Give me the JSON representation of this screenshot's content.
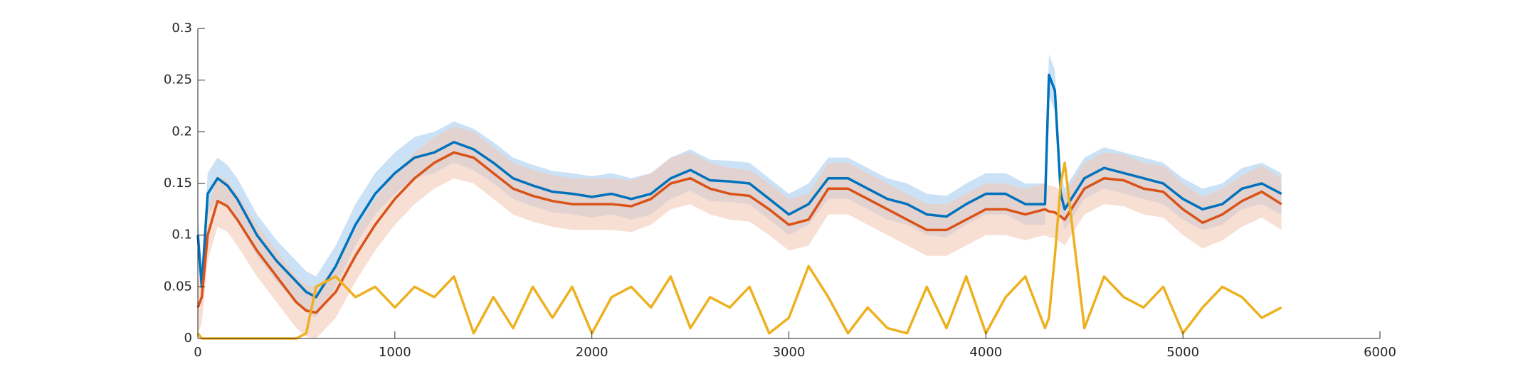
{
  "chart_data": {
    "type": "line",
    "x": [
      0,
      20,
      50,
      100,
      150,
      200,
      300,
      400,
      500,
      550,
      600,
      700,
      800,
      900,
      1000,
      1100,
      1200,
      1300,
      1400,
      1500,
      1600,
      1700,
      1800,
      1900,
      2000,
      2100,
      2200,
      2300,
      2400,
      2500,
      2600,
      2700,
      2800,
      2900,
      3000,
      3100,
      3200,
      3300,
      3400,
      3500,
      3600,
      3700,
      3800,
      3900,
      4000,
      4100,
      4200,
      4300,
      4320,
      4350,
      4380,
      4400,
      4500,
      4600,
      4700,
      4800,
      4900,
      5000,
      5100,
      5200,
      5300,
      5400,
      5500
    ],
    "series": [
      {
        "color": "#0072bd",
        "band": 0.02,
        "band_color": "#a8cdef",
        "values": [
          0.1,
          0.05,
          0.14,
          0.155,
          0.148,
          0.135,
          0.1,
          0.075,
          0.055,
          0.045,
          0.04,
          0.07,
          0.11,
          0.14,
          0.16,
          0.175,
          0.18,
          0.19,
          0.183,
          0.17,
          0.155,
          0.148,
          0.142,
          0.14,
          0.137,
          0.14,
          0.135,
          0.14,
          0.155,
          0.163,
          0.153,
          0.152,
          0.15,
          0.135,
          0.12,
          0.13,
          0.155,
          0.155,
          0.145,
          0.135,
          0.13,
          0.12,
          0.118,
          0.13,
          0.14,
          0.14,
          0.13,
          0.13,
          0.255,
          0.24,
          0.14,
          0.125,
          0.155,
          0.165,
          0.16,
          0.155,
          0.15,
          0.135,
          0.125,
          0.13,
          0.145,
          0.15,
          0.14
        ]
      },
      {
        "color": "#d95319",
        "band": 0.025,
        "band_color": "#f3c9b8",
        "values": [
          0.03,
          0.04,
          0.1,
          0.133,
          0.128,
          0.115,
          0.085,
          0.06,
          0.035,
          0.027,
          0.025,
          0.045,
          0.08,
          0.11,
          0.135,
          0.155,
          0.17,
          0.18,
          0.175,
          0.16,
          0.145,
          0.138,
          0.133,
          0.13,
          0.13,
          0.13,
          0.128,
          0.135,
          0.15,
          0.155,
          0.145,
          0.14,
          0.138,
          0.125,
          0.11,
          0.115,
          0.145,
          0.145,
          0.135,
          0.125,
          0.115,
          0.105,
          0.105,
          0.115,
          0.125,
          0.125,
          0.12,
          0.125,
          0.123,
          0.122,
          0.118,
          0.115,
          0.145,
          0.155,
          0.153,
          0.145,
          0.142,
          0.125,
          0.112,
          0.12,
          0.133,
          0.142,
          0.13
        ]
      },
      {
        "color": "#edb120",
        "values": [
          0.005,
          0,
          0,
          0,
          0,
          0,
          0,
          0,
          0,
          0.005,
          0.05,
          0.06,
          0.04,
          0.05,
          0.03,
          0.05,
          0.04,
          0.06,
          0.005,
          0.04,
          0.01,
          0.05,
          0.02,
          0.05,
          0.005,
          0.04,
          0.05,
          0.03,
          0.06,
          0.01,
          0.04,
          0.03,
          0.05,
          0.005,
          0.02,
          0.07,
          0.04,
          0.005,
          0.03,
          0.01,
          0.005,
          0.05,
          0.01,
          0.06,
          0.005,
          0.04,
          0.06,
          0.01,
          0.02,
          0.08,
          0.15,
          0.17,
          0.01,
          0.06,
          0.04,
          0.03,
          0.05,
          0.005,
          0.03,
          0.05,
          0.04,
          0.02,
          0.03
        ]
      }
    ],
    "xlim": [
      0,
      6000
    ],
    "xticks": [
      0,
      1000,
      2000,
      3000,
      4000,
      5000,
      6000
    ],
    "ylim": [
      0,
      0.3
    ],
    "yticks": [
      0,
      0.05,
      0.1,
      0.15,
      0.2,
      0.25,
      0.3
    ]
  }
}
